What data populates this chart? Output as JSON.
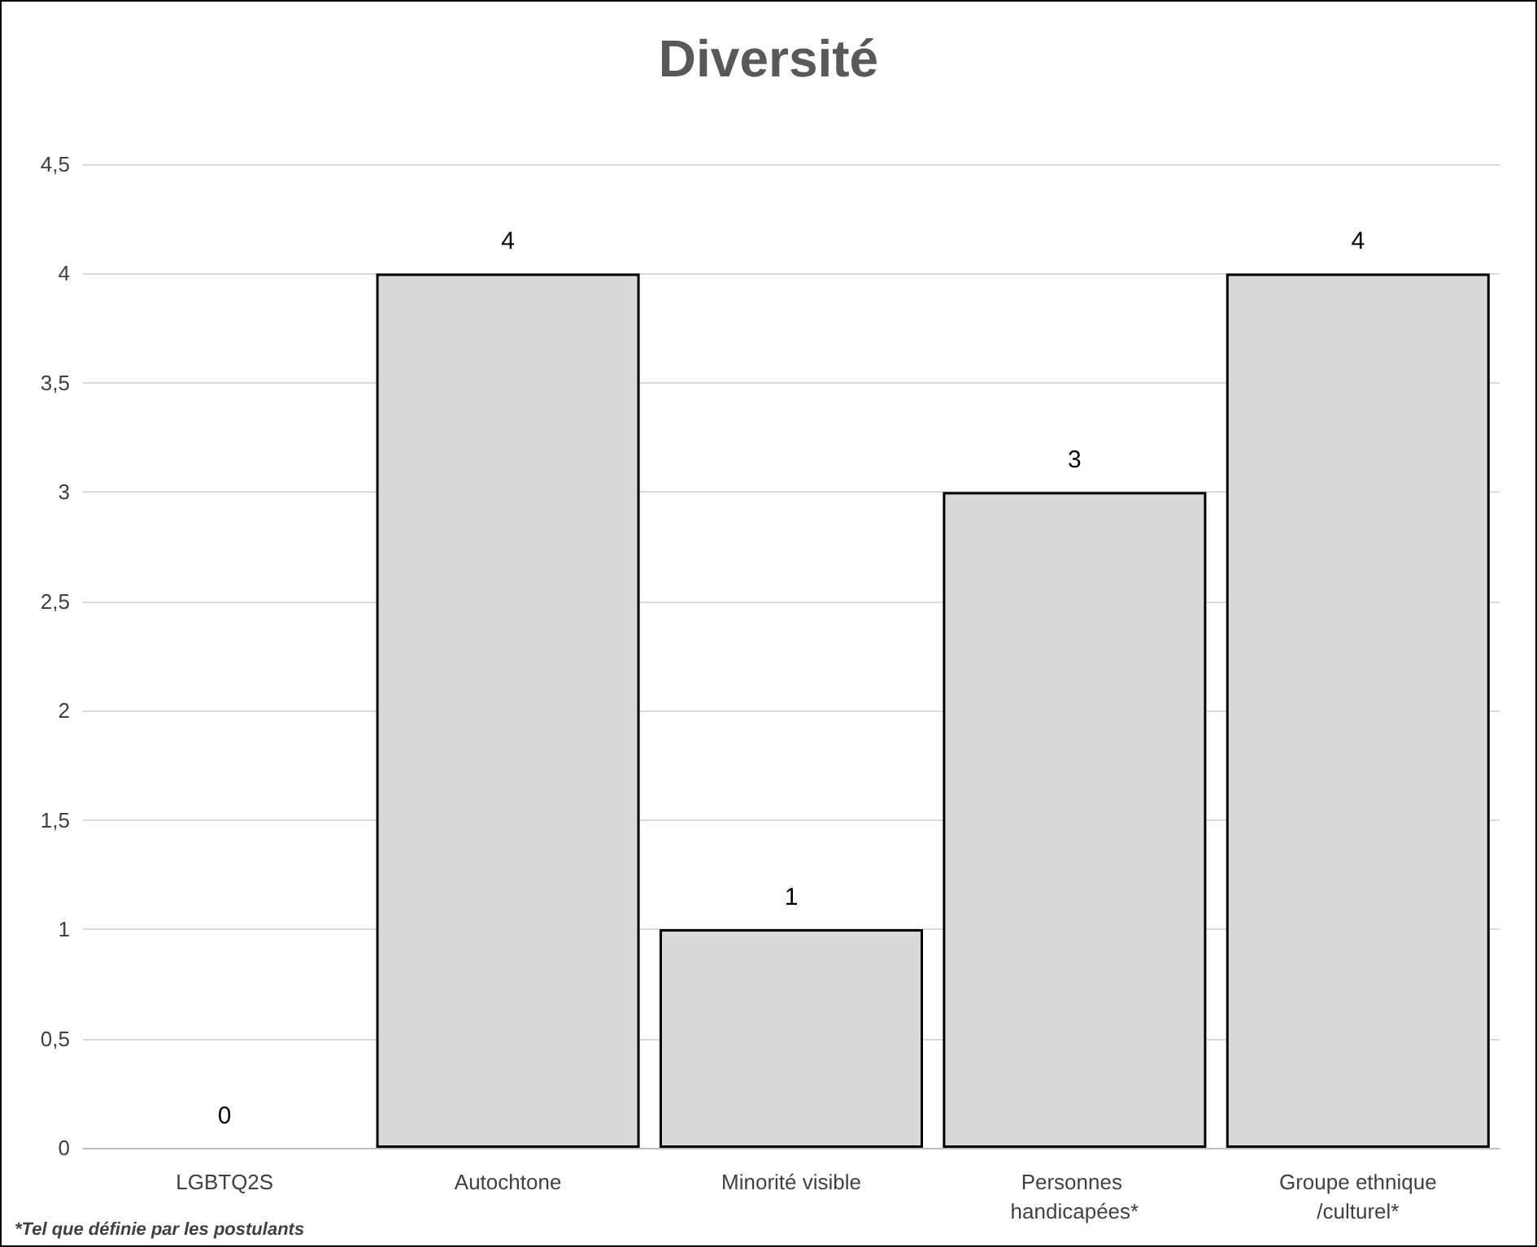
{
  "chart_data": {
    "type": "bar",
    "title": "Diversité",
    "categories": [
      "LGBTQ2S",
      "Autochtone",
      "Minorité visible",
      "Personnes handicapées*",
      "Groupe ethnique/culturel*"
    ],
    "values": [
      0,
      4,
      1,
      3,
      4
    ],
    "color": "#d9d9d9",
    "ylim": [
      0,
      4.5
    ],
    "yticks": [
      0,
      {
        "value": 0.5,
        "label": "0,5"
      },
      1,
      {
        "value": 1.5,
        "label": "1,5"
      },
      2,
      {
        "value": 2.5,
        "label": "2,5"
      },
      3,
      {
        "value": 3.5,
        "label": "3,5"
      },
      4,
      {
        "value": 4.5,
        "label": "4,5"
      }
    ],
    "grid": "y",
    "data_labels": true,
    "annotations": [
      "*Tel que définie par les postulants"
    ]
  }
}
